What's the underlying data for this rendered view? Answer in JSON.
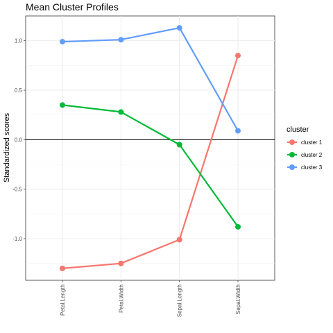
{
  "chart_data": {
    "type": "line",
    "title": "Mean Cluster Profiles",
    "xlabel": "",
    "ylabel": "Standardized scores",
    "categories": [
      "Petal.Length",
      "Petal.Width",
      "Sepal.Length",
      "Sepal.Width"
    ],
    "ylim": [
      -1.42,
      1.25
    ],
    "yticks": [
      -1.0,
      -0.5,
      0.0,
      0.5,
      1.0
    ],
    "ytick_labels": [
      "-1.0",
      "-0.5",
      "0.0",
      "0.5",
      "1.0"
    ],
    "reference_line_y": 0,
    "grid": true,
    "legend_title": "cluster",
    "legend_position": "right",
    "series": [
      {
        "name": "cluster 1",
        "color": "#F8766D",
        "values": [
          -1.3,
          -1.25,
          -1.01,
          0.85
        ]
      },
      {
        "name": "cluster 2",
        "color": "#00BA38",
        "values": [
          0.35,
          0.28,
          -0.05,
          -0.88
        ]
      },
      {
        "name": "cluster 3",
        "color": "#619CFF",
        "values": [
          0.99,
          1.01,
          1.13,
          0.09
        ]
      }
    ]
  }
}
